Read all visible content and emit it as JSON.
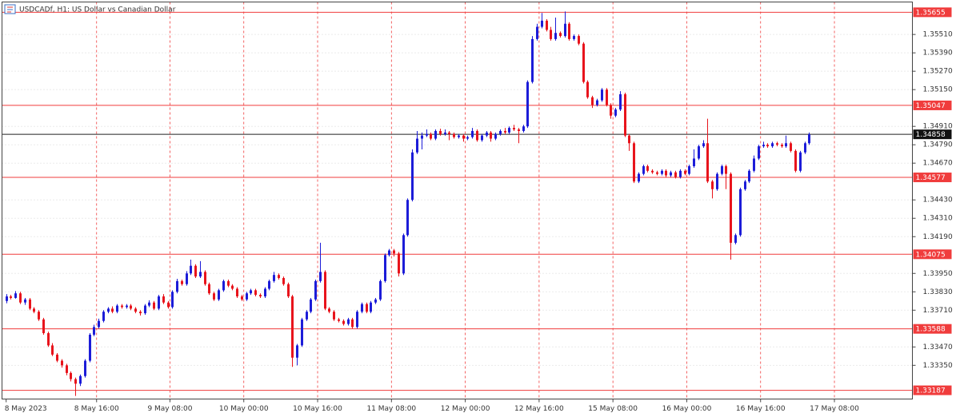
{
  "chart_data": {
    "type": "candlestick",
    "title": "USDCADf, H1:  US Dollar vs Canadian Dollar",
    "bull_color": "#1c1cd8",
    "bear_color": "#e8141c",
    "grid": true,
    "open": [
      1.3377,
      1.338,
      1.3379,
      1.3382,
      1.3376,
      1.3378,
      1.3372,
      1.337,
      1.3365,
      1.3356,
      1.3348,
      1.3342,
      1.3338,
      1.3335,
      1.333,
      1.3326,
      1.3323,
      1.3328,
      1.3338,
      1.3355,
      1.336,
      1.3364,
      1.337,
      1.3372,
      1.337,
      1.3374,
      1.3373,
      1.3374,
      1.3372,
      1.337,
      1.3369,
      1.3374,
      1.3376,
      1.3372,
      1.338,
      1.3376,
      1.3373,
      1.3383,
      1.339,
      1.3388,
      1.3395,
      1.34,
      1.3393,
      1.3396,
      1.3388,
      1.3382,
      1.3378,
      1.3384,
      1.339,
      1.3387,
      1.3385,
      1.338,
      1.3378,
      1.3382,
      1.3384,
      1.3381,
      1.338,
      1.3385,
      1.339,
      1.3394,
      1.3392,
      1.3388,
      1.338,
      1.334,
      1.3348,
      1.3365,
      1.337,
      1.3378,
      1.339,
      1.3396,
      1.3372,
      1.337,
      1.3365,
      1.3364,
      1.3362,
      1.3365,
      1.336,
      1.337,
      1.3375,
      1.337,
      1.3376,
      1.3378,
      1.339,
      1.3407,
      1.341,
      1.3408,
      1.3395,
      1.342,
      1.3443,
      1.3474,
      1.3483,
      1.3485,
      1.3486,
      1.3483,
      1.3488,
      1.3486,
      1.3487,
      1.3486,
      1.3484,
      1.3485,
      1.3483,
      1.3484,
      1.3488,
      1.3482,
      1.3485,
      1.3487,
      1.3483,
      1.3486,
      1.3488,
      1.3487,
      1.349,
      1.3489,
      1.3488,
      1.3491,
      1.352,
      1.3548,
      1.3556,
      1.356,
      1.3554,
      1.3548,
      1.3552,
      1.355,
      1.3558,
      1.3548,
      1.355,
      1.3545,
      1.352,
      1.351,
      1.3505,
      1.3508,
      1.3515,
      1.3505,
      1.3498,
      1.3502,
      1.3512,
      1.3485,
      1.348,
      1.3455,
      1.346,
      1.3465,
      1.3462,
      1.3461,
      1.346,
      1.3462,
      1.3459,
      1.3461,
      1.3458,
      1.3462,
      1.346,
      1.3465,
      1.347,
      1.3478,
      1.348,
      1.3455,
      1.345,
      1.346,
      1.3465,
      1.346,
      1.3415,
      1.342,
      1.345,
      1.3455,
      1.3462,
      1.347,
      1.3478,
      1.3479,
      1.3478,
      1.348,
      1.3479,
      1.3478,
      1.348,
      1.3475,
      1.3462,
      1.3474,
      1.348
    ],
    "high": [
      1.33815,
      1.3381,
      1.33835,
      1.3383,
      1.3379,
      1.3379,
      1.3373,
      1.3371,
      1.3366,
      1.3357,
      1.33495,
      1.3343,
      1.3339,
      1.3336,
      1.3331,
      1.3327,
      1.3329,
      1.3339,
      1.3356,
      1.33615,
      1.33655,
      1.3371,
      1.3373,
      1.33735,
      1.3375,
      1.3375,
      1.3375,
      1.3375,
      1.3373,
      1.3371,
      1.3375,
      1.33775,
      1.3377,
      1.3381,
      1.33815,
      1.3377,
      1.3384,
      1.33915,
      1.3391,
      1.33965,
      1.3404,
      1.3401,
      1.3403,
      1.3397,
      1.3389,
      1.3383,
      1.3385,
      1.3391,
      1.3391,
      1.3388,
      1.3386,
      1.3381,
      1.3383,
      1.3385,
      1.3385,
      1.3382,
      1.3386,
      1.3391,
      1.3396,
      1.3395,
      1.3393,
      1.3389,
      1.3381,
      1.3349,
      1.3366,
      1.3371,
      1.3379,
      1.3391,
      1.3415,
      1.3397,
      1.3373,
      1.3371,
      1.3366,
      1.3365,
      1.3366,
      1.3366,
      1.3371,
      1.3376,
      1.3376,
      1.3377,
      1.3379,
      1.3391,
      1.3408,
      1.3411,
      1.3411,
      1.3409,
      1.3421,
      1.3444,
      1.3476,
      1.3488,
      1.3487,
      1.3489,
      1.3487,
      1.3489,
      1.34895,
      1.3489,
      1.3488,
      1.3487,
      1.3486,
      1.3486,
      1.3485,
      1.349,
      1.3489,
      1.3486,
      1.3488,
      1.3488,
      1.3487,
      1.3489,
      1.349,
      1.3491,
      1.3492,
      1.349,
      1.3492,
      1.3521,
      1.355,
      1.3558,
      1.3565,
      1.3561,
      1.3556,
      1.3562,
      1.3553,
      1.3566,
      1.3559,
      1.3551,
      1.3551,
      1.3546,
      1.3521,
      1.3511,
      1.3509,
      1.3516,
      1.3516,
      1.3506,
      1.3503,
      1.3514,
      1.3513,
      1.3486,
      1.3481,
      1.3461,
      1.3466,
      1.3466,
      1.3463,
      1.3462,
      1.3463,
      1.3463,
      1.3462,
      1.3462,
      1.3463,
      1.3463,
      1.3466,
      1.3476,
      1.3479,
      1.3482,
      1.3496,
      1.3456,
      1.3461,
      1.3466,
      1.3466,
      1.3461,
      1.3421,
      1.3451,
      1.3456,
      1.3463,
      1.3472,
      1.3479,
      1.3481,
      1.348,
      1.3481,
      1.3481,
      1.348,
      1.3485,
      1.3481,
      1.3476,
      1.3475,
      1.3481,
      1.3487
    ],
    "low": [
      1.33755,
      1.3378,
      1.33785,
      1.3375,
      1.33745,
      1.3371,
      1.3369,
      1.3364,
      1.3355,
      1.3347,
      1.3341,
      1.3337,
      1.33335,
      1.33285,
      1.33245,
      1.3315,
      1.33215,
      1.3327,
      1.3337,
      1.3354,
      1.3359,
      1.3363,
      1.3369,
      1.3369,
      1.3369,
      1.3372,
      1.3372,
      1.3371,
      1.3369,
      1.33675,
      1.3368,
      1.3373,
      1.3371,
      1.3371,
      1.3375,
      1.3372,
      1.3372,
      1.3382,
      1.3387,
      1.3387,
      1.3394,
      1.3392,
      1.3392,
      1.3387,
      1.3381,
      1.3377,
      1.3377,
      1.3383,
      1.3386,
      1.3384,
      1.3379,
      1.3377,
      1.3377,
      1.3381,
      1.338,
      1.3379,
      1.3379,
      1.3384,
      1.3389,
      1.3391,
      1.3387,
      1.3379,
      1.3334,
      1.3335,
      1.3347,
      1.3364,
      1.3369,
      1.3377,
      1.3389,
      1.3371,
      1.3369,
      1.3364,
      1.3363,
      1.3361,
      1.3361,
      1.3359,
      1.3359,
      1.3369,
      1.3369,
      1.3369,
      1.3375,
      1.3377,
      1.3389,
      1.3406,
      1.3406,
      1.3393,
      1.3394,
      1.3419,
      1.3442,
      1.3473,
      1.3476,
      1.3484,
      1.3482,
      1.3482,
      1.3485,
      1.3485,
      1.3482,
      1.3483,
      1.3483,
      1.3481,
      1.3482,
      1.3483,
      1.3481,
      1.3481,
      1.3484,
      1.3481,
      1.3482,
      1.3485,
      1.3486,
      1.3486,
      1.3488,
      1.348,
      1.3487,
      1.349,
      1.3519,
      1.3547,
      1.3555,
      1.3553,
      1.3547,
      1.3547,
      1.3549,
      1.3549,
      1.3547,
      1.3547,
      1.3544,
      1.3519,
      1.3509,
      1.3503,
      1.3504,
      1.3507,
      1.3504,
      1.3496,
      1.3497,
      1.3501,
      1.3484,
      1.3475,
      1.3454,
      1.3454,
      1.3459,
      1.3461,
      1.346,
      1.3459,
      1.3459,
      1.3458,
      1.3458,
      1.3457,
      1.3457,
      1.3459,
      1.3459,
      1.3464,
      1.3469,
      1.3477,
      1.3454,
      1.3444,
      1.3449,
      1.3459,
      1.345,
      1.3404,
      1.3414,
      1.3419,
      1.3449,
      1.3454,
      1.3461,
      1.3469,
      1.3477,
      1.3477,
      1.3477,
      1.3478,
      1.3477,
      1.3477,
      1.3474,
      1.3461,
      1.3461,
      1.3473,
      1.3479
    ],
    "close": [
      1.338,
      1.3379,
      1.3382,
      1.3376,
      1.3378,
      1.3372,
      1.337,
      1.3365,
      1.3356,
      1.3348,
      1.3342,
      1.3338,
      1.3335,
      1.333,
      1.3326,
      1.3323,
      1.3328,
      1.3338,
      1.3355,
      1.336,
      1.3364,
      1.337,
      1.3372,
      1.337,
      1.3374,
      1.3373,
      1.3374,
      1.3372,
      1.337,
      1.3369,
      1.3374,
      1.3376,
      1.3372,
      1.338,
      1.3376,
      1.3373,
      1.3383,
      1.339,
      1.3388,
      1.3395,
      1.34,
      1.3393,
      1.3396,
      1.3388,
      1.3382,
      1.3378,
      1.3384,
      1.339,
      1.3387,
      1.3385,
      1.338,
      1.3378,
      1.3382,
      1.3384,
      1.3381,
      1.338,
      1.3385,
      1.339,
      1.3394,
      1.3392,
      1.3388,
      1.338,
      1.334,
      1.3348,
      1.3365,
      1.337,
      1.3378,
      1.339,
      1.3396,
      1.3372,
      1.337,
      1.3365,
      1.3364,
      1.3362,
      1.3365,
      1.336,
      1.337,
      1.3375,
      1.337,
      1.3376,
      1.3378,
      1.339,
      1.3407,
      1.341,
      1.3408,
      1.3395,
      1.342,
      1.3443,
      1.3474,
      1.3483,
      1.3485,
      1.3486,
      1.3483,
      1.3488,
      1.3486,
      1.3487,
      1.3486,
      1.3484,
      1.3485,
      1.3483,
      1.3484,
      1.3488,
      1.3482,
      1.3485,
      1.3487,
      1.3483,
      1.3486,
      1.3488,
      1.3487,
      1.349,
      1.3489,
      1.3488,
      1.3491,
      1.352,
      1.3548,
      1.3556,
      1.356,
      1.3554,
      1.3548,
      1.3552,
      1.355,
      1.3558,
      1.3548,
      1.355,
      1.3545,
      1.352,
      1.351,
      1.3505,
      1.3508,
      1.3515,
      1.3505,
      1.3498,
      1.3502,
      1.3512,
      1.3485,
      1.348,
      1.3455,
      1.346,
      1.3465,
      1.3462,
      1.3461,
      1.346,
      1.3462,
      1.3459,
      1.3461,
      1.3458,
      1.3462,
      1.346,
      1.3465,
      1.347,
      1.3478,
      1.348,
      1.3455,
      1.345,
      1.346,
      1.3465,
      1.346,
      1.3415,
      1.342,
      1.345,
      1.3455,
      1.3462,
      1.347,
      1.3478,
      1.3479,
      1.3478,
      1.348,
      1.3479,
      1.3478,
      1.348,
      1.3475,
      1.3462,
      1.3474,
      1.348,
      1.34858
    ],
    "xlim": [
      -0.9,
      196.4
    ],
    "xticks": [
      {
        "value": 0,
        "label": "8 May 2023"
      },
      {
        "value": 19.6,
        "label": "8 May 16:00"
      },
      {
        "value": 35.5,
        "label": "9 May 08:00"
      },
      {
        "value": 51.5,
        "label": "10 May 00:00"
      },
      {
        "value": 67.5,
        "label": "10 May 16:00"
      },
      {
        "value": 83.5,
        "label": "11 May 08:00"
      },
      {
        "value": 99.5,
        "label": "12 May 00:00"
      },
      {
        "value": 115.5,
        "label": "12 May 16:00"
      },
      {
        "value": 131.5,
        "label": "15 May 08:00"
      },
      {
        "value": 147.5,
        "label": "16 May 00:00"
      },
      {
        "value": 163.5,
        "label": "16 May 16:00"
      },
      {
        "value": 179.5,
        "label": "17 May 08:00"
      }
    ],
    "ylim": [
      1.3313,
      1.35722
    ],
    "yticks": [
      {
        "value": 1.3551,
        "label": "1.35510"
      },
      {
        "value": 1.3539,
        "label": "1.35390"
      },
      {
        "value": 1.3527,
        "label": "1.35270"
      },
      {
        "value": 1.3515,
        "label": "1.35150"
      },
      {
        "value": 1.3491,
        "label": "1.34910"
      },
      {
        "value": 1.3479,
        "label": "1.34790"
      },
      {
        "value": 1.3467,
        "label": "1.34670"
      },
      {
        "value": 1.3443,
        "label": "1.34430"
      },
      {
        "value": 1.3431,
        "label": "1.34310"
      },
      {
        "value": 1.3419,
        "label": "1.34190"
      },
      {
        "value": 1.3395,
        "label": "1.33950"
      },
      {
        "value": 1.3383,
        "label": "1.33830"
      },
      {
        "value": 1.3371,
        "label": "1.33710"
      },
      {
        "value": 1.3347,
        "label": "1.33470"
      },
      {
        "value": 1.3335,
        "label": "1.33350"
      }
    ],
    "levels": [
      1.35655,
      1.35047,
      1.34577,
      1.34075,
      1.33588,
      1.33187
    ],
    "level_color": "#f03c3c",
    "current_price": 1.34858
  }
}
